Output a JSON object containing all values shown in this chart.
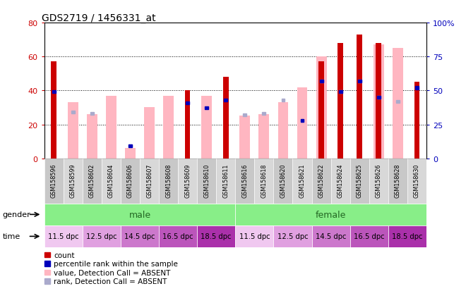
{
  "title": "GDS2719 / 1456331_at",
  "samples": [
    "GSM158596",
    "GSM158599",
    "GSM158602",
    "GSM158604",
    "GSM158606",
    "GSM158607",
    "GSM158608",
    "GSM158609",
    "GSM158610",
    "GSM158611",
    "GSM158616",
    "GSM158618",
    "GSM158620",
    "GSM158621",
    "GSM158622",
    "GSM158624",
    "GSM158625",
    "GSM158626",
    "GSM158628",
    "GSM158630"
  ],
  "red_bars": [
    57,
    0,
    0,
    0,
    0,
    0,
    0,
    40,
    0,
    48,
    0,
    0,
    0,
    0,
    57,
    68,
    73,
    68,
    0,
    45
  ],
  "pink_bars": [
    0,
    33,
    26,
    37,
    6,
    30,
    37,
    0,
    37,
    0,
    25,
    26,
    33,
    42,
    60,
    0,
    0,
    67,
    65,
    0
  ],
  "blue_pct": [
    49,
    0,
    0,
    0,
    9,
    0,
    0,
    41,
    37,
    43,
    0,
    0,
    0,
    28,
    57,
    49,
    57,
    45,
    0,
    52
  ],
  "light_blue_pct": [
    0,
    34,
    33,
    0,
    9,
    0,
    0,
    0,
    0,
    0,
    32,
    33,
    43,
    28,
    57,
    49,
    57,
    45,
    42,
    0
  ],
  "ylim_left": [
    0,
    80
  ],
  "yticks_left": [
    0,
    20,
    40,
    60,
    80
  ],
  "ytick_labels_left": [
    "0",
    "20",
    "40",
    "60",
    "80"
  ],
  "yticks_right": [
    0,
    25,
    50,
    75,
    100
  ],
  "ytick_labels_right": [
    "0",
    "25",
    "50",
    "75",
    "100%"
  ],
  "red_color": "#CC0000",
  "pink_color": "#FFB6C1",
  "blue_color": "#0000BB",
  "light_blue_color": "#AAAACC",
  "red_label_color": "#CC0000",
  "blue_label_color": "#0000BB",
  "gender_color": "#88EE88",
  "gender_text_color": "#226622",
  "time_colors_hex": [
    "#F0C8F0",
    "#E0A0E0",
    "#CC78CC",
    "#BB55BB",
    "#AA30AA",
    "#F0C8F0",
    "#E0A0E0",
    "#CC78CC",
    "#BB55BB",
    "#AA30AA"
  ],
  "time_labels": [
    "11.5 dpc",
    "12.5 dpc",
    "14.5 dpc",
    "16.5 dpc",
    "18.5 dpc",
    "11.5 dpc",
    "12.5 dpc",
    "14.5 dpc",
    "16.5 dpc",
    "18.5 dpc"
  ],
  "cell_colors": [
    "#C8C8C8",
    "#D8D8D8",
    "#C8C8C8",
    "#D8D8D8",
    "#C8C8C8",
    "#D8D8D8",
    "#C8C8C8",
    "#D8D8D8",
    "#C8C8C8",
    "#D8D8D8",
    "#C8C8C8",
    "#D8D8D8",
    "#C8C8C8",
    "#D8D8D8",
    "#C8C8C8",
    "#D8D8D8",
    "#C8C8C8",
    "#D8D8D8",
    "#C8C8C8",
    "#D8D8D8"
  ]
}
